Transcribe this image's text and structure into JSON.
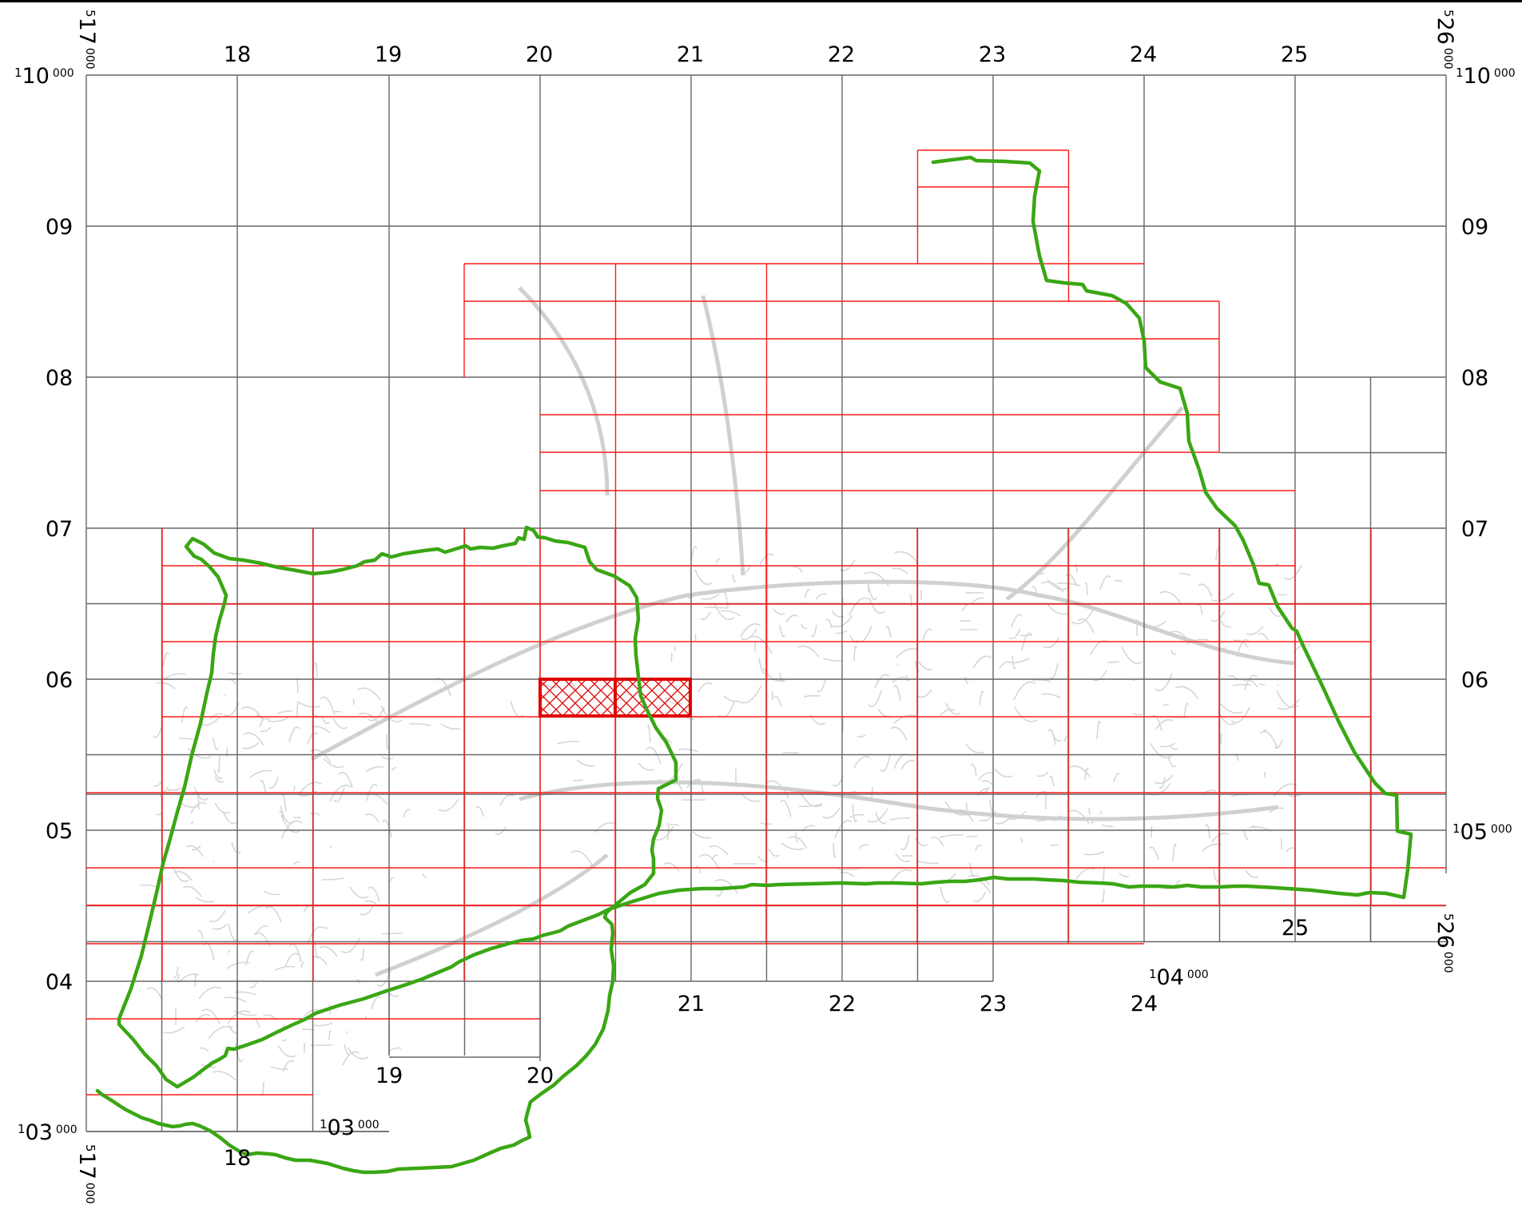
{
  "map": {
    "colors": {
      "grid": "#666666",
      "sheet_grid": "#ff1a1a",
      "boundary": "#3aa614",
      "streets": "#d0d0d0",
      "highlight": "#e00000",
      "top_border": "#000000"
    },
    "top_axis_labels": [
      "18",
      "19",
      "20",
      "21",
      "22",
      "23",
      "24",
      "25"
    ],
    "left_axis_labels": [
      "09",
      "08",
      "07",
      "06",
      "05",
      "04"
    ],
    "right_axis_labels": [
      "09",
      "08",
      "07",
      "06"
    ],
    "bottom_axis_labels_lower": [
      "19",
      "20"
    ],
    "bottom_axis_labels_mid": [
      "21",
      "22",
      "23",
      "24"
    ],
    "bottom_axis_labels_right": [
      "25"
    ],
    "bottom_axis_label_18": "18",
    "corner_coords": {
      "top_left_easting": {
        "prefix": "5",
        "main": "17",
        "suffix": "000"
      },
      "top_right_easting": {
        "prefix": "5",
        "main": "26",
        "suffix": "000"
      },
      "top_left_northing": {
        "prefix": "1",
        "main": "10",
        "suffix": "000"
      },
      "top_right_northing": {
        "prefix": "1",
        "main": "10",
        "suffix": "000"
      },
      "right_northing_05": {
        "prefix": "1",
        "main": "05",
        "suffix": "000"
      },
      "right_easting_26": {
        "prefix": "5",
        "main": "26",
        "suffix": "000"
      },
      "northing_04": {
        "prefix": "1",
        "main": "04",
        "suffix": "000"
      },
      "northing_03_left": {
        "prefix": "1",
        "main": "03",
        "suffix": "000"
      },
      "northing_03_right": {
        "prefix": "1",
        "main": "03",
        "suffix": "000"
      },
      "bottom_easting_17": {
        "prefix": "5",
        "main": "17",
        "suffix": "000"
      }
    },
    "highlighted_sheets": 2
  }
}
